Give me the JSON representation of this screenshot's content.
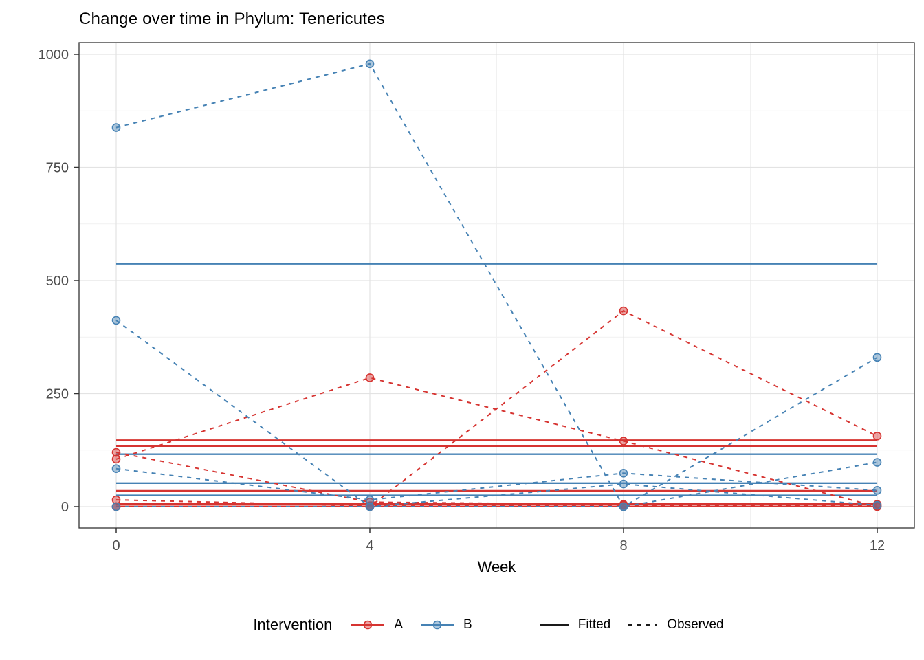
{
  "chart_data": {
    "type": "line",
    "title": "Change over time in Phylum: Tenericutes",
    "xlabel": "Week",
    "legend_title": "Intervention",
    "x_ticks": [
      0,
      4,
      8,
      12
    ],
    "y_ticks": [
      0,
      250,
      500,
      750,
      1000
    ],
    "x_minor": [
      2,
      6,
      10
    ],
    "y_minor": [
      125,
      375,
      625,
      875
    ],
    "ylim": [
      0,
      1000
    ],
    "xlim": [
      0,
      12
    ],
    "grid": true,
    "legend_position": "bottom",
    "weeks": [
      0,
      4,
      8,
      12
    ],
    "groups": [
      {
        "id": "A",
        "label": "A",
        "color": "#d63431"
      },
      {
        "id": "B",
        "label": "B",
        "color": "#4682b4"
      }
    ],
    "linetype_legend": [
      {
        "label": "Fitted",
        "style": "solid"
      },
      {
        "label": "Observed",
        "style": "dashed"
      }
    ],
    "series": [
      {
        "group": "A",
        "observed": [
          0,
          0,
          433,
          156
        ],
        "fitted": 147
      },
      {
        "group": "A",
        "observed": [
          105,
          285,
          145,
          0
        ],
        "fitted": 134
      },
      {
        "group": "A",
        "observed": [
          120,
          10,
          5,
          5
        ],
        "fitted": 35
      },
      {
        "group": "A",
        "observed": [
          15,
          2,
          3,
          3
        ],
        "fitted": 6
      },
      {
        "group": "A",
        "observed": [
          0,
          0,
          0,
          1
        ],
        "fitted": 0.5
      },
      {
        "group": "B",
        "observed": [
          838,
          979,
          0,
          330
        ],
        "fitted": 537
      },
      {
        "group": "B",
        "observed": [
          412,
          0,
          50,
          3
        ],
        "fitted": 116
      },
      {
        "group": "B",
        "observed": [
          84,
          15,
          74,
          36
        ],
        "fitted": 52
      },
      {
        "group": "B",
        "observed": [
          0,
          0,
          0,
          98
        ],
        "fitted": 25
      }
    ],
    "colors": {
      "grid_major": "#e3e3e3",
      "grid_minor": "#f1f1f1",
      "panel_border": "#333333",
      "tick": "#333333",
      "tick_label": "#4d4d4d",
      "legend_line": "#1a1a1a"
    }
  }
}
